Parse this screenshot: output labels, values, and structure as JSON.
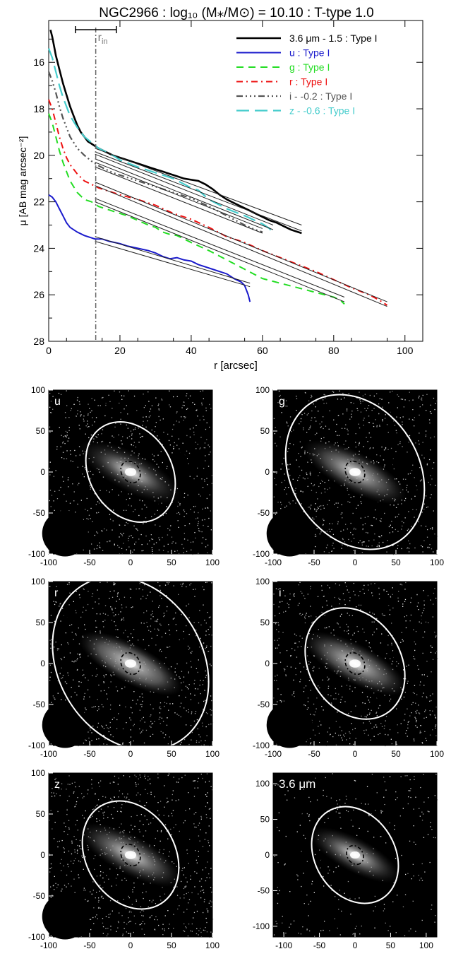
{
  "chart_data": [
    {
      "type": "line",
      "title": "NGC2966 : log₁₀ (M⁎/M⊙) = 10.10 : T-type 1.0",
      "xlabel": "r [arcsec]",
      "ylabel": "μ [AB mag arcsec⁻²]",
      "xlim": [
        0,
        105
      ],
      "ylim": [
        28,
        14.2
      ],
      "y_inverted": true,
      "xticks": [
        "0",
        "20",
        "40",
        "60",
        "80",
        "100"
      ],
      "yticks": [
        "16",
        "18",
        "20",
        "22",
        "24",
        "26",
        "28"
      ],
      "rin_label": "r_in",
      "rin_value": 13.2,
      "rin_errorbar": [
        7.5,
        19
      ],
      "legend_position": "top-right",
      "series": [
        {
          "name": "3.6 μm - 1.5 : Type I",
          "color": "#000000",
          "dash": "",
          "width": 2.6,
          "x": [
            0.5,
            1,
            1.5,
            2,
            3,
            4,
            5,
            6,
            7,
            8,
            9,
            10,
            11,
            12,
            13,
            14,
            16,
            18,
            20,
            22,
            24,
            26,
            28,
            30,
            32,
            34,
            36,
            38,
            40,
            42,
            44,
            46,
            48,
            50,
            52,
            54,
            56,
            58,
            60,
            62,
            64,
            66,
            68,
            70,
            71
          ],
          "y": [
            14.6,
            14.9,
            15.3,
            15.7,
            16.3,
            16.9,
            17.4,
            17.9,
            18.3,
            18.7,
            19.0,
            19.2,
            19.4,
            19.5,
            19.6,
            19.7,
            19.85,
            20.0,
            20.1,
            20.2,
            20.3,
            20.4,
            20.5,
            20.6,
            20.7,
            20.8,
            20.9,
            21.0,
            21.05,
            21.1,
            21.25,
            21.45,
            21.7,
            21.9,
            22.05,
            22.2,
            22.35,
            22.5,
            22.65,
            22.8,
            22.9,
            23.05,
            23.2,
            23.3,
            23.35
          ],
          "fit": [
            [
              13,
              19.7,
              71,
              23.0
            ],
            [
              13,
              19.85,
              71,
              23.25
            ]
          ]
        },
        {
          "name": "u : Type I",
          "color": "#1a1acc",
          "dash": "",
          "width": 2,
          "x": [
            0,
            1,
            2,
            3,
            4,
            5,
            6,
            8,
            10,
            12,
            13,
            15,
            17,
            20,
            22,
            25,
            28,
            30,
            32,
            34,
            36,
            38,
            40,
            42,
            44,
            46,
            48,
            50,
            52,
            54,
            55,
            56,
            56.5
          ],
          "y": [
            21.7,
            21.8,
            22.0,
            22.3,
            22.6,
            22.9,
            23.1,
            23.3,
            23.45,
            23.55,
            23.6,
            23.6,
            23.7,
            23.8,
            23.9,
            24.0,
            24.1,
            24.2,
            24.35,
            24.45,
            24.4,
            24.5,
            24.55,
            24.7,
            24.8,
            24.9,
            25.0,
            25.1,
            25.3,
            25.45,
            25.6,
            26.0,
            26.3
          ],
          "fit": [
            [
              13,
              23.5,
              56.5,
              25.5
            ],
            [
              13,
              23.7,
              56.5,
              25.65
            ]
          ]
        },
        {
          "name": "g : Type I",
          "color": "#22dd22",
          "dash": "10,7",
          "width": 2,
          "x": [
            0,
            1,
            2,
            3,
            4,
            5,
            6,
            8,
            10,
            12,
            14,
            16,
            18,
            20,
            22,
            25,
            28,
            30,
            32,
            34,
            36,
            38,
            40,
            45,
            50,
            55,
            60,
            65,
            70,
            75,
            80,
            82,
            83
          ],
          "y": [
            18.2,
            18.6,
            19.2,
            19.8,
            20.3,
            20.7,
            21.1,
            21.6,
            21.9,
            22.0,
            22.2,
            22.3,
            22.4,
            22.5,
            22.6,
            22.8,
            23.0,
            23.1,
            23.3,
            23.4,
            23.45,
            23.6,
            23.75,
            24.1,
            24.5,
            24.9,
            25.3,
            25.5,
            25.7,
            25.9,
            26.1,
            26.25,
            26.4
          ],
          "fit": [
            [
              13,
              21.85,
              83,
              26.1
            ],
            [
              13,
              22.0,
              83,
              26.3
            ]
          ]
        },
        {
          "name": "r : Type I",
          "color": "#ee1111",
          "dash": "9,5,2,5",
          "width": 2,
          "x": [
            0,
            1,
            2,
            3,
            4,
            5,
            6,
            8,
            10,
            12,
            14,
            16,
            18,
            20,
            25,
            30,
            35,
            40,
            45,
            50,
            55,
            60,
            65,
            70,
            75,
            80,
            85,
            90,
            93,
            95
          ],
          "y": [
            17.6,
            18.0,
            18.6,
            19.2,
            19.7,
            20.1,
            20.4,
            20.8,
            21.1,
            21.25,
            21.4,
            21.5,
            21.6,
            21.7,
            21.9,
            22.15,
            22.5,
            22.75,
            23.1,
            23.5,
            23.75,
            24.1,
            24.4,
            24.7,
            25.0,
            25.35,
            25.7,
            26.0,
            26.25,
            26.45
          ],
          "fit": [
            [
              13,
              21.15,
              95,
              26.3
            ],
            [
              13,
              21.3,
              95,
              26.5
            ]
          ]
        },
        {
          "name": "i - -0.2 : Type I",
          "color": "#555555",
          "dash": "9,4,2,4,2,4,2,4",
          "width": 2.2,
          "x": [
            0,
            1,
            2,
            3,
            4,
            5,
            6,
            8,
            10,
            12,
            14,
            16,
            18,
            20,
            25,
            30,
            35,
            40,
            45,
            50,
            55,
            58,
            60
          ],
          "y": [
            16.4,
            16.8,
            17.3,
            17.9,
            18.4,
            18.8,
            19.2,
            19.7,
            20.0,
            20.25,
            20.45,
            20.6,
            20.75,
            20.85,
            21.1,
            21.35,
            21.6,
            21.85,
            22.2,
            22.6,
            23.0,
            23.2,
            23.3
          ],
          "fit": [
            [
              13,
              20.3,
              60,
              23.15
            ],
            [
              13,
              20.5,
              60,
              23.35
            ]
          ]
        },
        {
          "name": "z - -0.6 : Type I",
          "color": "#44cccc",
          "dash": "18,8",
          "width": 2.2,
          "x": [
            0,
            1,
            2,
            3,
            4,
            5,
            6,
            8,
            10,
            12,
            14,
            16,
            18,
            20,
            25,
            30,
            35,
            40,
            42,
            45,
            50,
            55,
            60,
            62,
            63
          ],
          "y": [
            15.4,
            15.8,
            16.4,
            17.0,
            17.5,
            17.9,
            18.3,
            18.8,
            19.2,
            19.45,
            19.7,
            19.85,
            20.0,
            20.2,
            20.5,
            20.75,
            21.0,
            21.4,
            21.5,
            21.9,
            22.3,
            22.6,
            22.95,
            23.15,
            23.4
          ],
          "fit": [
            [
              13,
              19.95,
              63,
              23.0
            ],
            [
              13,
              20.15,
              63,
              23.2
            ]
          ]
        }
      ]
    },
    {
      "type": "image",
      "band": "u",
      "label": "u",
      "xlim": [
        -100,
        100
      ],
      "ylim": [
        -100,
        100
      ],
      "xticks": [
        "-100",
        "-50",
        "0",
        "50",
        "100"
      ],
      "yticks": [
        "100",
        "50",
        "0",
        "-50",
        "-100"
      ],
      "ellipse": {
        "rx": 65,
        "ry": 50,
        "angle": 58
      },
      "inner_ellipse": {
        "rx": 14,
        "ry": 11,
        "angle": 58
      },
      "brightness": 0.35
    },
    {
      "type": "image",
      "band": "g",
      "label": "g",
      "xlim": [
        -100,
        100
      ],
      "ylim": [
        -100,
        100
      ],
      "xticks": [
        "-100",
        "-50",
        "0",
        "50",
        "100"
      ],
      "yticks": [
        "100",
        "50",
        "0",
        "-50",
        "-100"
      ],
      "ellipse": {
        "rx": 100,
        "ry": 78,
        "angle": 58
      },
      "inner_ellipse": {
        "rx": 14,
        "ry": 11,
        "angle": 58
      },
      "brightness": 0.55
    },
    {
      "type": "image",
      "band": "r",
      "label": "r",
      "xlim": [
        -100,
        100
      ],
      "ylim": [
        -100,
        100
      ],
      "xticks": [
        "-100",
        "-50",
        "0",
        "50",
        "100"
      ],
      "yticks": [
        "100",
        "50",
        "0",
        "-50",
        "-100"
      ],
      "ellipse": {
        "rx": 112,
        "ry": 88,
        "angle": 58
      },
      "inner_ellipse": {
        "rx": 14,
        "ry": 11,
        "angle": 58
      },
      "brightness": 0.7
    },
    {
      "type": "image",
      "band": "i",
      "label": "i",
      "xlim": [
        -100,
        100
      ],
      "ylim": [
        -100,
        100
      ],
      "xticks": [
        "-100",
        "-50",
        "0",
        "50",
        "100"
      ],
      "yticks": [
        "100",
        "50",
        "0",
        "-50",
        "-100"
      ],
      "ellipse": {
        "rx": 72,
        "ry": 56,
        "angle": 58
      },
      "inner_ellipse": {
        "rx": 14,
        "ry": 11,
        "angle": 58
      },
      "brightness": 0.6
    },
    {
      "type": "image",
      "band": "z",
      "label": "z",
      "xlim": [
        -100,
        100
      ],
      "ylim": [
        -100,
        100
      ],
      "xticks": [
        "-100",
        "-50",
        "0",
        "50",
        "100"
      ],
      "yticks": [
        "100",
        "50",
        "0",
        "-50",
        "-100"
      ],
      "ellipse": {
        "rx": 70,
        "ry": 54,
        "angle": 58
      },
      "inner_ellipse": {
        "rx": 14,
        "ry": 11,
        "angle": 58
      },
      "brightness": 0.5
    },
    {
      "type": "image",
      "band": "3.6",
      "label": "3.6 μm",
      "xlim": [
        -115,
        115
      ],
      "ylim": [
        -115,
        115
      ],
      "xticks": [
        "-100",
        "-50",
        "0",
        "50",
        "100"
      ],
      "yticks": [
        "100",
        "50",
        "0",
        "-50",
        "-100"
      ],
      "ellipse": {
        "rx": 72,
        "ry": 56,
        "angle": 58
      },
      "inner_ellipse": {
        "rx": 14,
        "ry": 11,
        "angle": 58
      },
      "brightness": 0.45
    }
  ]
}
